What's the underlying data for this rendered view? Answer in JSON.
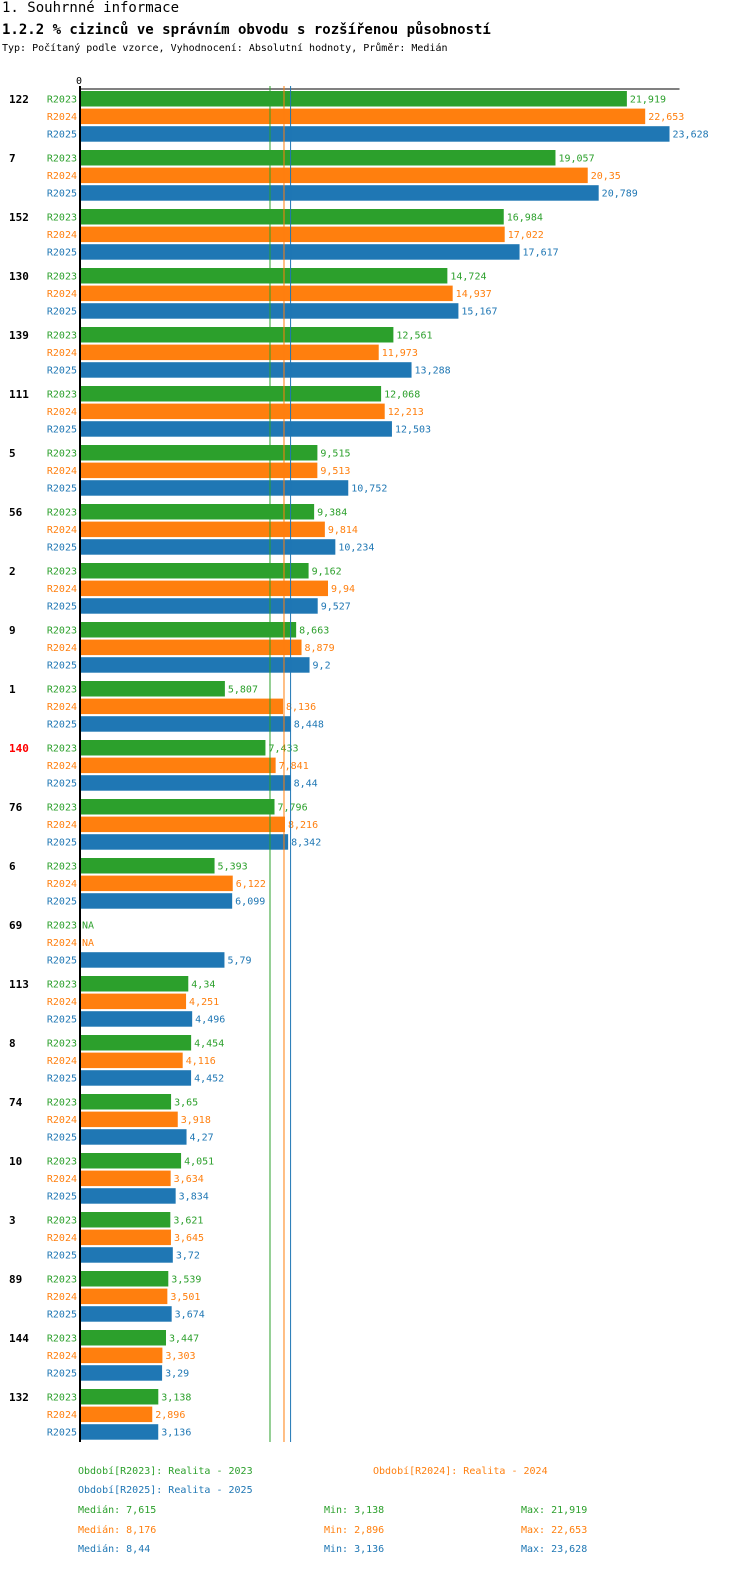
{
  "header": {
    "title": "1. Souhrnné informace",
    "subtitle": "1.2.2 % cizinců ve správním obvodu s rozšířenou působností",
    "description": "Typ: Počítaný podle vzorce, Vyhodnocení: Absolutní hodnoty, Průměr: Medián"
  },
  "colors": {
    "R2023": "#2ca02c",
    "R2024": "#ff7f0e",
    "R2025": "#1f77b4",
    "highlight": "#ff0000"
  },
  "chart_data": {
    "type": "bar",
    "orientation": "horizontal",
    "x_tick_label": "0",
    "xlim": [
      0,
      23.628
    ],
    "series_names": [
      "R2023",
      "R2024",
      "R2025"
    ],
    "categories": [
      "122",
      "7",
      "152",
      "130",
      "139",
      "111",
      "5",
      "56",
      "2",
      "9",
      "1",
      "140",
      "76",
      "6",
      "69",
      "113",
      "8",
      "74",
      "10",
      "3",
      "89",
      "144",
      "132"
    ],
    "highlighted_category": "140",
    "series": [
      {
        "name": "R2023",
        "values": [
          21.919,
          19.057,
          16.984,
          14.724,
          12.561,
          12.068,
          9.515,
          9.384,
          9.162,
          8.663,
          5.807,
          7.433,
          7.796,
          5.393,
          null,
          4.34,
          4.454,
          3.65,
          4.051,
          3.621,
          3.539,
          3.447,
          3.138
        ],
        "labels": [
          "21,919",
          "19,057",
          "16,984",
          "14,724",
          "12,561",
          "12,068",
          "9,515",
          "9,384",
          "9,162",
          "8,663",
          "5,807",
          "7,433",
          "7,796",
          "5,393",
          "NA",
          "4,34",
          "4,454",
          "3,65",
          "4,051",
          "3,621",
          "3,539",
          "3,447",
          "3,138"
        ]
      },
      {
        "name": "R2024",
        "values": [
          22.653,
          20.35,
          17.022,
          14.937,
          11.973,
          12.213,
          9.513,
          9.814,
          9.94,
          8.879,
          8.136,
          7.841,
          8.216,
          6.122,
          null,
          4.251,
          4.116,
          3.918,
          3.634,
          3.645,
          3.501,
          3.303,
          2.896
        ],
        "labels": [
          "22,653",
          "20,35",
          "17,022",
          "14,937",
          "11,973",
          "12,213",
          "9,513",
          "9,814",
          "9,94",
          "8,879",
          "8,136",
          "7,841",
          "8,216",
          "6,122",
          "NA",
          "4,251",
          "4,116",
          "3,918",
          "3,634",
          "3,645",
          "3,501",
          "3,303",
          "2,896"
        ]
      },
      {
        "name": "R2025",
        "values": [
          23.628,
          20.789,
          17.617,
          15.167,
          13.288,
          12.503,
          10.752,
          10.234,
          9.527,
          9.2,
          8.448,
          8.44,
          8.342,
          6.099,
          5.79,
          4.496,
          4.452,
          4.27,
          3.834,
          3.72,
          3.674,
          3.29,
          3.136
        ],
        "labels": [
          "23,628",
          "20,789",
          "17,617",
          "15,167",
          "13,288",
          "12,503",
          "10,752",
          "10,234",
          "9,527",
          "9,2",
          "8,448",
          "8,44",
          "8,342",
          "6,099",
          "5,79",
          "4,496",
          "4,452",
          "4,27",
          "3,834",
          "3,72",
          "3,674",
          "3,29",
          "3,136"
        ]
      }
    ],
    "median_lines": [
      7.615,
      8.176,
      8.44
    ]
  },
  "legend": {
    "r2023": "Období[R2023]: Realita - 2023",
    "r2024": "Období[R2024]: Realita - 2024",
    "r2025": "Období[R2025]: Realita - 2025"
  },
  "stats": [
    {
      "median": "Medián: 7,615",
      "min": "Min: 3,138",
      "max": "Max: 21,919"
    },
    {
      "median": "Medián: 8,176",
      "min": "Min: 2,896",
      "max": "Max: 22,653"
    },
    {
      "median": "Medián: 8,44",
      "min": "Min: 3,136",
      "max": "Max: 23,628"
    }
  ]
}
